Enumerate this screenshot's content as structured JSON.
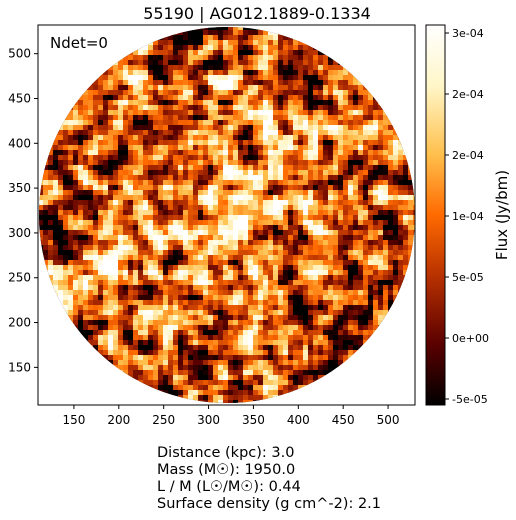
{
  "chart_data": {
    "type": "heatmap",
    "title": "55190 | AG012.1889-0.1334",
    "annotation": "Ndet=0",
    "x_ticks": [
      "150",
      "200",
      "250",
      "300",
      "350",
      "400",
      "450",
      "500"
    ],
    "y_ticks": [
      "150",
      "200",
      "250",
      "300",
      "350",
      "400",
      "450",
      "500"
    ],
    "xlim": [
      110,
      530
    ],
    "ylim": [
      108,
      532
    ],
    "map_shape": "circular",
    "colormap": "afmhot",
    "colorbar": {
      "label": "Flux (Jy/bm)",
      "ticks": [
        "3e-04",
        "2e-04",
        "2e-04",
        "1e-04",
        "5e-05",
        "0e+00",
        "-5e-05"
      ],
      "range": [
        -6e-05,
        0.00031
      ]
    },
    "cmap_colors": [
      "#000000",
      "#5a0000",
      "#b32e00",
      "#ff6a00",
      "#ffc04d",
      "#fff6c8",
      "#ffffff"
    ]
  },
  "info": [
    {
      "label": "Distance (kpc):",
      "value": "3.0"
    },
    {
      "label": "Mass (M☉):",
      "value": "1950.0"
    },
    {
      "label": "L / M (L☉/M☉):",
      "value": "0.44"
    },
    {
      "label": "Surface density (g cm^-2):",
      "value": "2.1"
    }
  ]
}
